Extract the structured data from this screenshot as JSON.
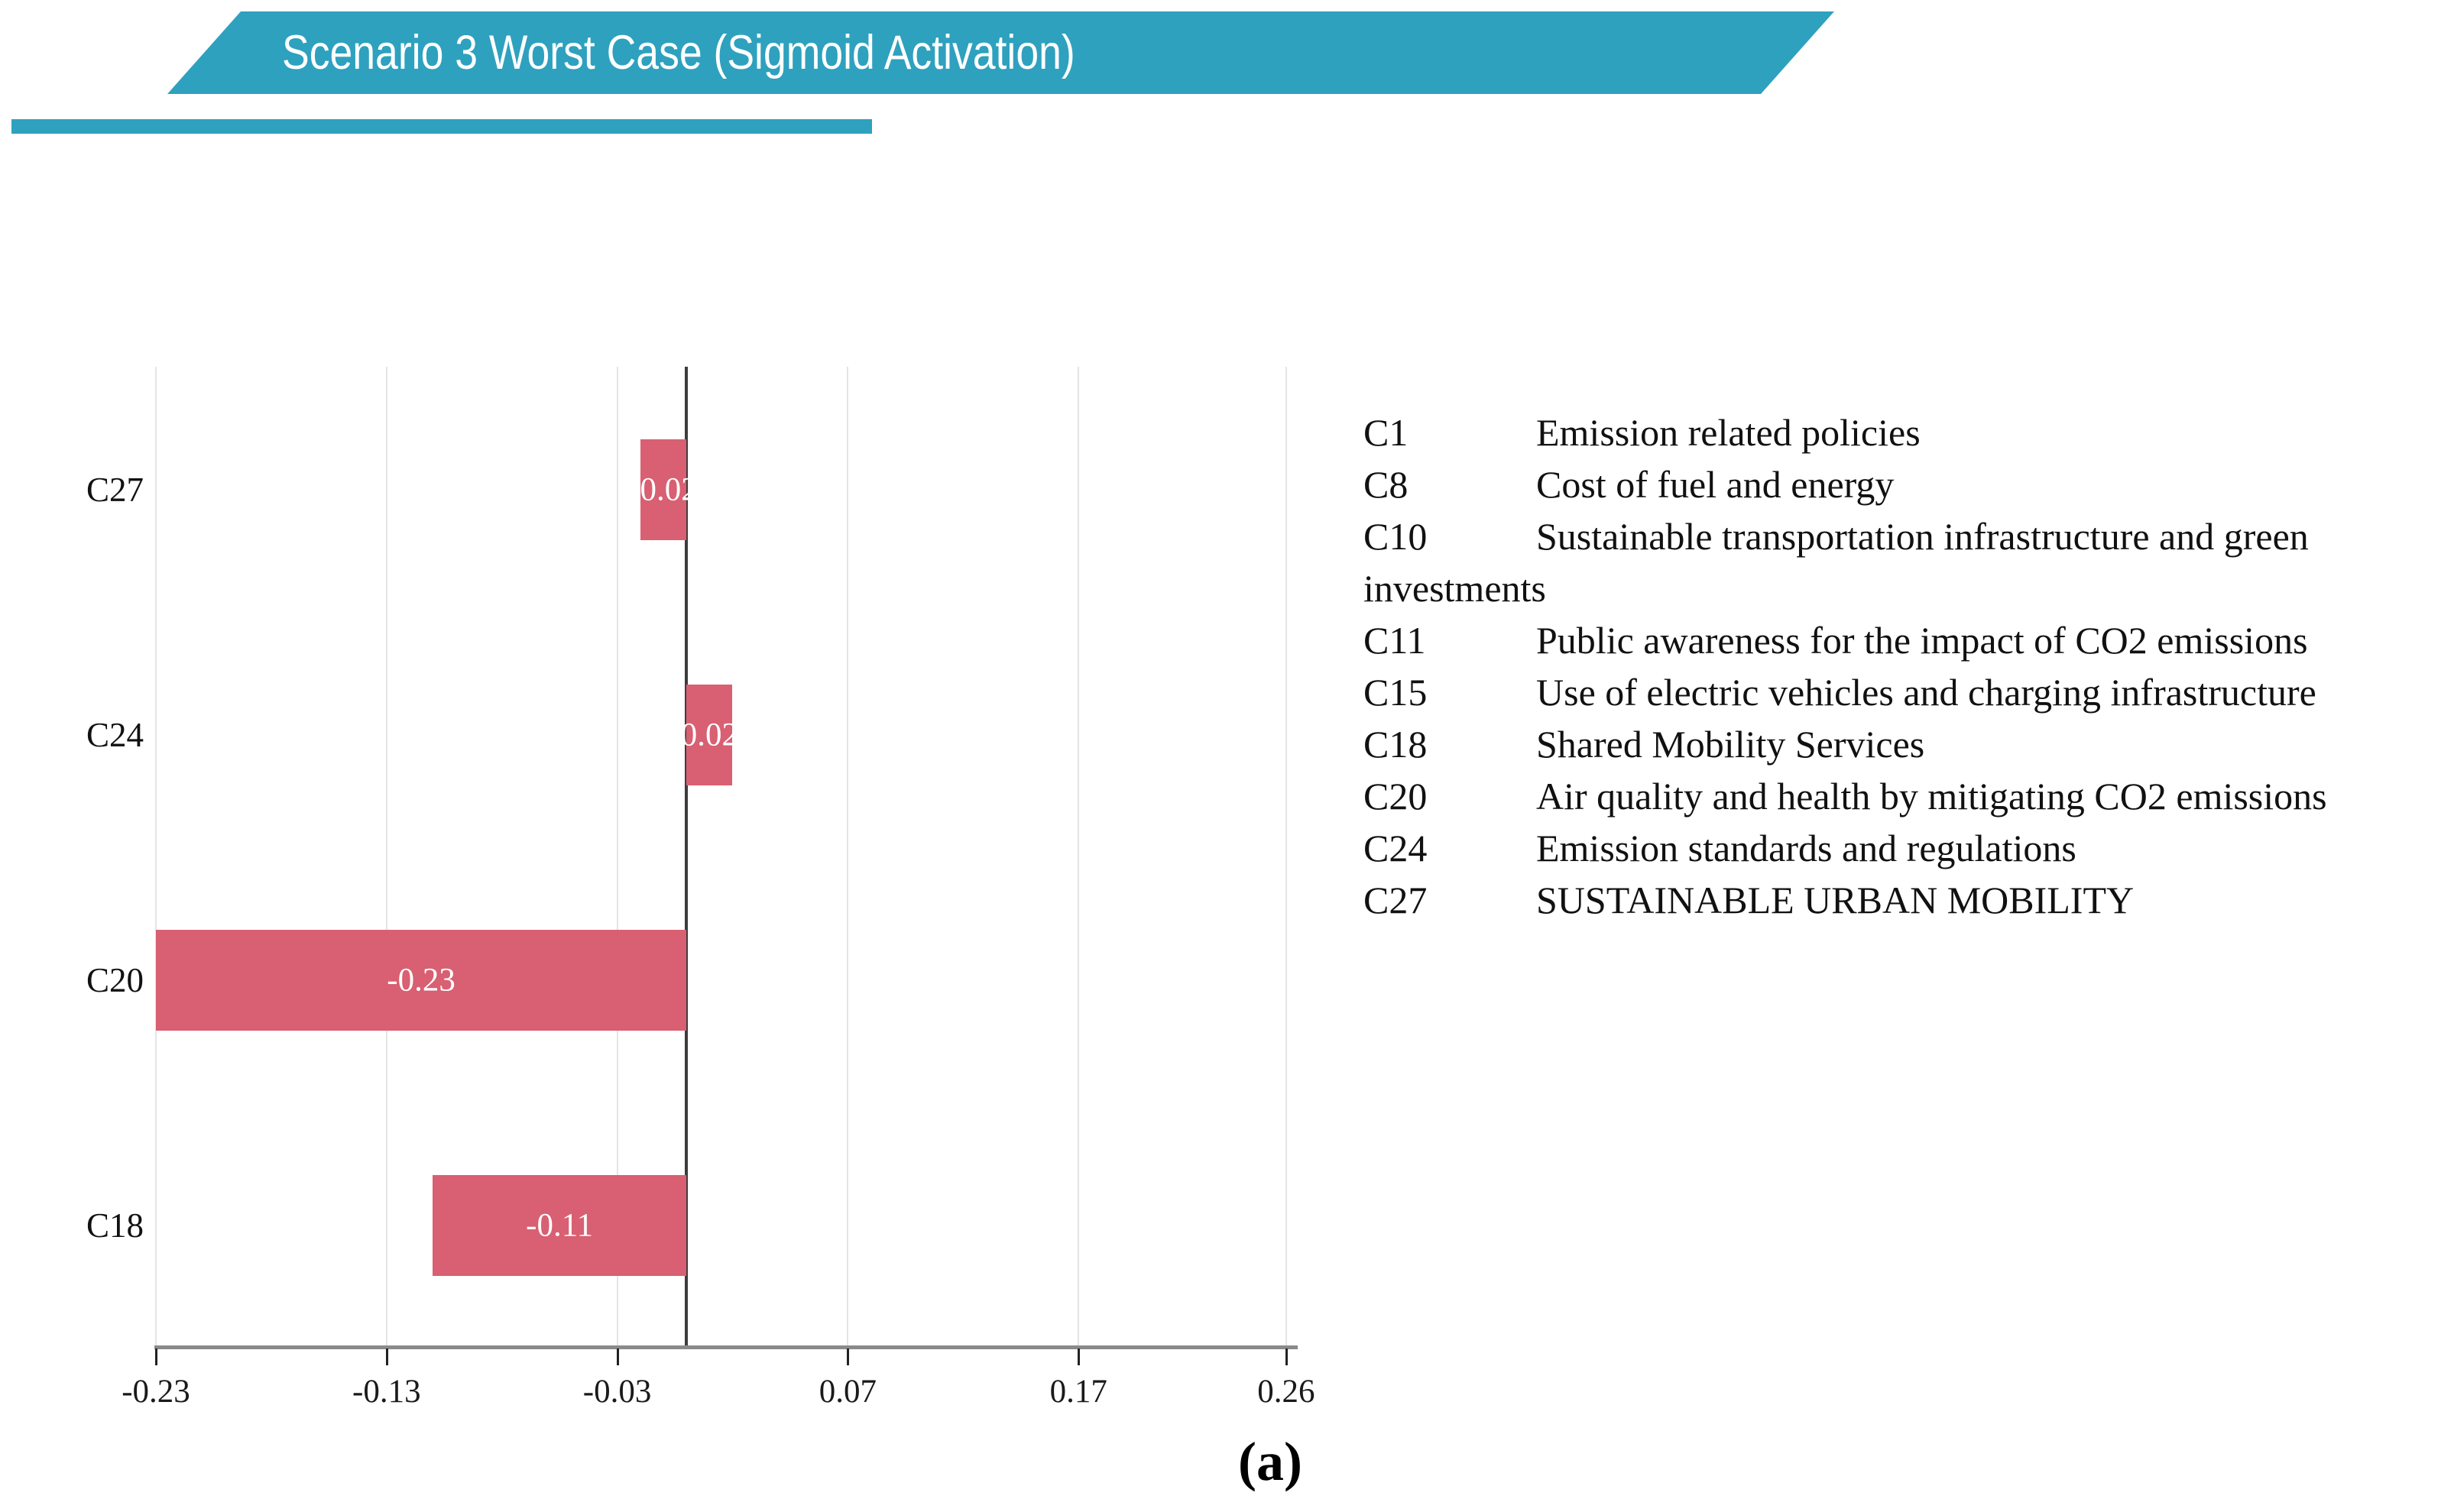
{
  "banner": {
    "title": "Scenario 3 Worst Case (Sigmoid Activation)",
    "color": "#2ea1bf"
  },
  "caption": "(a)",
  "legend": {
    "items": [
      {
        "code": "C1",
        "label": "Emission related policies"
      },
      {
        "code": "C8",
        "label": "Cost of fuel and energy"
      },
      {
        "code": "C10",
        "label": "Sustainable transportation infrastructure and green investments"
      },
      {
        "code": "C11",
        "label": "Public awareness for the impact of CO2 emissions"
      },
      {
        "code": "C15",
        "label": "Use of electric vehicles and charging infrastructure"
      },
      {
        "code": "C18",
        "label": "Shared Mobility Services"
      },
      {
        "code": "C20",
        "label": "Air quality and health by mitigating CO2 emissions"
      },
      {
        "code": "C24",
        "label": "Emission standards and regulations"
      },
      {
        "code": "C27",
        "label": "SUSTAINABLE URBAN MOBILITY"
      }
    ]
  },
  "chart_data": {
    "type": "bar",
    "orientation": "horizontal",
    "title": "Scenario 3 Worst Case (Sigmoid Activation)",
    "categories": [
      "C27",
      "C24",
      "C20",
      "C18"
    ],
    "values": [
      -0.02,
      0.02,
      -0.23,
      -0.11
    ],
    "bar_labels": [
      "-0.02",
      "0.02",
      "-0.23",
      "-0.11"
    ],
    "xlim": [
      -0.23,
      0.26
    ],
    "x_ticks": [
      -0.23,
      -0.13,
      -0.03,
      0.07,
      0.17,
      0.26
    ],
    "x_tick_labels": [
      "-0.23",
      "-0.13",
      "-0.03",
      "0.07",
      "0.17",
      "0.26"
    ],
    "bar_color": "#d95f72",
    "grid": true,
    "zero_line": true,
    "legend_position": "right"
  }
}
